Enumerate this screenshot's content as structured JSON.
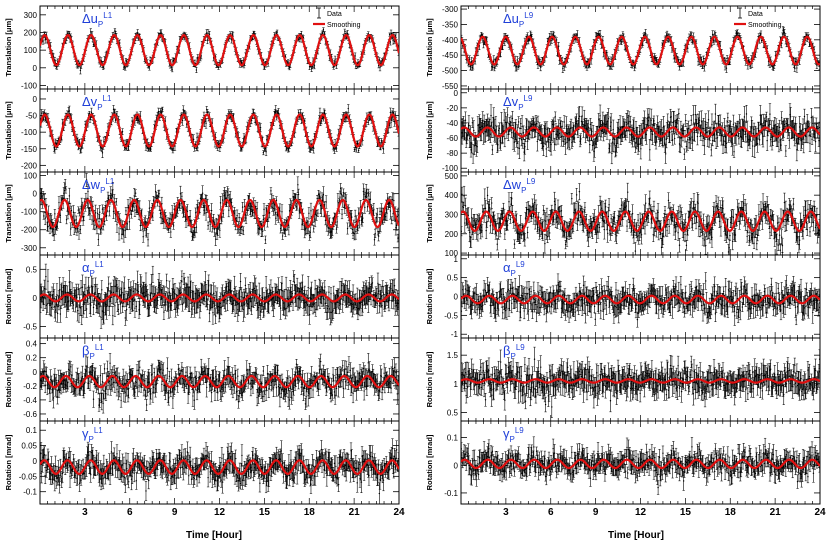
{
  "figure": {
    "xlabel": "Time [Hour]",
    "legend": {
      "data_label": "Data",
      "smoothing_label": "Smoothing"
    },
    "colors": {
      "data": "#000000",
      "smoothing": "#e01010",
      "title": "#1f3fd8"
    }
  },
  "chart_data": [
    {
      "type": "line",
      "column": "left",
      "row": 0,
      "title_symbol": "Δu",
      "title_sub": "P",
      "title_sup": "L1",
      "ylabel": "Translation [μm]",
      "ylim": [
        -120,
        350
      ],
      "yticks": [
        -100,
        0,
        100,
        200,
        300
      ],
      "xlim": [
        0,
        24
      ],
      "xticks": [
        3,
        6,
        9,
        12,
        15,
        18,
        21,
        24
      ],
      "series": [
        {
          "name": "Data",
          "kind": "errorbar"
        },
        {
          "name": "Smoothing",
          "kind": "line"
        }
      ],
      "smoothing_model": {
        "mean": 100,
        "amplitude": 85,
        "period_hours": 1.55,
        "phase": 0.3
      },
      "noise": 12,
      "error_bar": 14
    },
    {
      "type": "line",
      "column": "left",
      "row": 1,
      "title_symbol": "Δv",
      "title_sub": "P",
      "title_sup": "L1",
      "ylabel": "Translation [μm]",
      "ylim": [
        -220,
        30
      ],
      "yticks": [
        -200,
        -150,
        -100,
        -50,
        0
      ],
      "xlim": [
        0,
        24
      ],
      "xticks": [
        3,
        6,
        9,
        12,
        15,
        18,
        21,
        24
      ],
      "series": [
        {
          "name": "Data",
          "kind": "errorbar"
        },
        {
          "name": "Smoothing",
          "kind": "line"
        }
      ],
      "smoothing_model": {
        "mean": -95,
        "amplitude": 48,
        "period_hours": 1.55,
        "phase": 0.3
      },
      "noise": 8,
      "error_bar": 10
    },
    {
      "type": "line",
      "column": "left",
      "row": 2,
      "title_symbol": "Δw",
      "title_sub": "P",
      "title_sup": "L1",
      "ylabel": "Translation [μm]",
      "ylim": [
        -340,
        120
      ],
      "yticks": [
        -300,
        -200,
        -100,
        0,
        100
      ],
      "xlim": [
        0,
        24
      ],
      "xticks": [
        3,
        6,
        9,
        12,
        15,
        18,
        21,
        24
      ],
      "series": [
        {
          "name": "Data",
          "kind": "errorbar"
        },
        {
          "name": "Smoothing",
          "kind": "line"
        }
      ],
      "smoothing_model": {
        "mean": -110,
        "amplitude": 75,
        "period_hours": 1.55,
        "phase": 1.2
      },
      "noise": 40,
      "error_bar": 30
    },
    {
      "type": "line",
      "column": "left",
      "row": 3,
      "title_symbol": "α",
      "title_sub": "P",
      "title_sup": "L1",
      "ylabel": "Rotation [mrad]",
      "ylim": [
        -0.7,
        0.75
      ],
      "yticks": [
        -0.5,
        0,
        0.5
      ],
      "xlim": [
        0,
        24
      ],
      "xticks": [
        3,
        6,
        9,
        12,
        15,
        18,
        21,
        24
      ],
      "series": [
        {
          "name": "Data",
          "kind": "errorbar"
        },
        {
          "name": "Smoothing",
          "kind": "line"
        }
      ],
      "smoothing_model": {
        "mean": 0,
        "amplitude": 0.06,
        "period_hours": 1.55,
        "phase": 0.5
      },
      "noise": 0.13,
      "error_bar": 0.15
    },
    {
      "type": "line",
      "column": "left",
      "row": 4,
      "title_symbol": "β",
      "title_sub": "P",
      "title_sup": "L1",
      "ylabel": "Rotation [mrad]",
      "ylim": [
        -0.7,
        0.48
      ],
      "yticks": [
        -0.6,
        -0.4,
        -0.2,
        0,
        0.2,
        0.4
      ],
      "xlim": [
        0,
        24
      ],
      "xticks": [
        3,
        6,
        9,
        12,
        15,
        18,
        21,
        24
      ],
      "series": [
        {
          "name": "Data",
          "kind": "errorbar"
        },
        {
          "name": "Smoothing",
          "kind": "line"
        }
      ],
      "smoothing_model": {
        "mean": -0.14,
        "amplitude": 0.08,
        "period_hours": 1.55,
        "phase": 0.8
      },
      "noise": 0.09,
      "error_bar": 0.1
    },
    {
      "type": "line",
      "column": "left",
      "row": 5,
      "title_symbol": "γ",
      "title_sub": "P",
      "title_sup": "L1",
      "ylabel": "Rotation [mrad]",
      "ylim": [
        -0.14,
        0.13
      ],
      "yticks": [
        -0.1,
        -0.05,
        0,
        0.05,
        0.1
      ],
      "xlim": [
        0,
        24
      ],
      "xticks": [
        3,
        6,
        9,
        12,
        15,
        18,
        21,
        24
      ],
      "series": [
        {
          "name": "Data",
          "kind": "errorbar"
        },
        {
          "name": "Smoothing",
          "kind": "line"
        }
      ],
      "smoothing_model": {
        "mean": -0.02,
        "amplitude": 0.022,
        "period_hours": 1.55,
        "phase": 0.4
      },
      "noise": 0.02,
      "error_bar": 0.025
    },
    {
      "type": "line",
      "column": "right",
      "row": 0,
      "title_symbol": "Δu",
      "title_sub": "P",
      "title_sup": "L9",
      "ylabel": "Translation [μm]",
      "ylim": [
        -560,
        -290
      ],
      "yticks": [
        -550,
        -500,
        -450,
        -400,
        -350,
        -300
      ],
      "xlim": [
        0,
        24
      ],
      "xticks": [
        3,
        6,
        9,
        12,
        15,
        18,
        21,
        24
      ],
      "series": [
        {
          "name": "Data",
          "kind": "errorbar"
        },
        {
          "name": "Smoothing",
          "kind": "line"
        }
      ],
      "smoothing_model": {
        "mean": -435,
        "amplitude": 45,
        "period_hours": 1.55,
        "phase": 2.0
      },
      "noise": 8,
      "error_bar": 10
    },
    {
      "type": "line",
      "column": "right",
      "row": 1,
      "title_symbol": "Δv",
      "title_sub": "P",
      "title_sup": "L9",
      "ylabel": "Translation [μm]",
      "ylim": [
        -105,
        5
      ],
      "yticks": [
        -100,
        -80,
        -60,
        -40,
        -20,
        0
      ],
      "xlim": [
        0,
        24
      ],
      "xticks": [
        3,
        6,
        9,
        12,
        15,
        18,
        21,
        24
      ],
      "series": [
        {
          "name": "Data",
          "kind": "errorbar"
        },
        {
          "name": "Smoothing",
          "kind": "line"
        }
      ],
      "smoothing_model": {
        "mean": -52,
        "amplitude": 6,
        "period_hours": 1.55,
        "phase": 0.7
      },
      "noise": 10,
      "error_bar": 10
    },
    {
      "type": "line",
      "column": "right",
      "row": 2,
      "title_symbol": "Δw",
      "title_sub": "P",
      "title_sup": "L9",
      "ylabel": "Translation [μm]",
      "ylim": [
        90,
        520
      ],
      "yticks": [
        100,
        200,
        300,
        400,
        500
      ],
      "xlim": [
        0,
        24
      ],
      "xticks": [
        3,
        6,
        9,
        12,
        15,
        18,
        21,
        24
      ],
      "series": [
        {
          "name": "Data",
          "kind": "errorbar"
        },
        {
          "name": "Smoothing",
          "kind": "line"
        }
      ],
      "smoothing_model": {
        "mean": 265,
        "amplitude": 50,
        "period_hours": 1.55,
        "phase": 1.0
      },
      "noise": 40,
      "error_bar": 35
    },
    {
      "type": "line",
      "column": "right",
      "row": 3,
      "title_symbol": "α",
      "title_sub": "P",
      "title_sup": "L9",
      "ylabel": "Rotation [mrad]",
      "ylim": [
        -1.1,
        1.1
      ],
      "yticks": [
        -1,
        -0.5,
        0,
        0.5,
        1
      ],
      "xlim": [
        0,
        24
      ],
      "xticks": [
        3,
        6,
        9,
        12,
        15,
        18,
        21,
        24
      ],
      "series": [
        {
          "name": "Data",
          "kind": "errorbar"
        },
        {
          "name": "Smoothing",
          "kind": "line"
        }
      ],
      "smoothing_model": {
        "mean": -0.08,
        "amplitude": 0.1,
        "period_hours": 1.55,
        "phase": 0.2
      },
      "noise": 0.18,
      "error_bar": 0.2
    },
    {
      "type": "line",
      "column": "right",
      "row": 4,
      "title_symbol": "β",
      "title_sub": "P",
      "title_sup": "L9",
      "ylabel": "Rotation [mrad]",
      "ylim": [
        0.35,
        1.8
      ],
      "yticks": [
        0.5,
        1,
        1.5
      ],
      "xlim": [
        0,
        24
      ],
      "xticks": [
        3,
        6,
        9,
        12,
        15,
        18,
        21,
        24
      ],
      "series": [
        {
          "name": "Data",
          "kind": "errorbar"
        },
        {
          "name": "Smoothing",
          "kind": "line"
        }
      ],
      "smoothing_model": {
        "mean": 1.05,
        "amplitude": 0.03,
        "period_hours": 1.55,
        "phase": 0.2
      },
      "noise": 0.12,
      "error_bar": 0.15
    },
    {
      "type": "line",
      "column": "right",
      "row": 5,
      "title_symbol": "γ",
      "title_sub": "P",
      "title_sup": "L9",
      "ylabel": "Rotation [mrad]",
      "ylim": [
        -0.14,
        0.16
      ],
      "yticks": [
        -0.1,
        0,
        0.1
      ],
      "xlim": [
        0,
        24
      ],
      "xticks": [
        3,
        6,
        9,
        12,
        15,
        18,
        21,
        24
      ],
      "series": [
        {
          "name": "Data",
          "kind": "errorbar"
        },
        {
          "name": "Smoothing",
          "kind": "line"
        }
      ],
      "smoothing_model": {
        "mean": 0.005,
        "amplitude": 0.015,
        "period_hours": 1.55,
        "phase": 0.6
      },
      "noise": 0.022,
      "error_bar": 0.025
    }
  ]
}
